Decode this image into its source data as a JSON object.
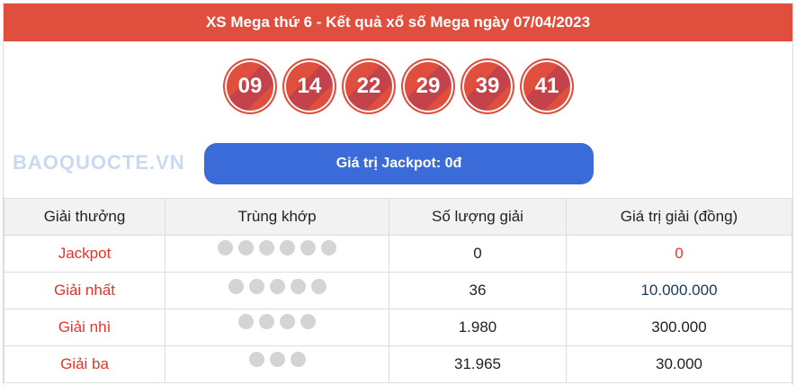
{
  "title": "XS Mega thứ 6 - Kết quả xổ số Mega ngày 07/04/2023",
  "numbers": [
    "09",
    "14",
    "22",
    "29",
    "39",
    "41"
  ],
  "jackpot_label": "Giá trị Jackpot: 0đ",
  "table": {
    "headers": [
      "Giải thưởng",
      "Trùng khớp",
      "Số lượng giải",
      "Giá trị giải (đồng)"
    ],
    "rows": [
      {
        "prize": "Jackpot",
        "matches": 6,
        "count": "0",
        "value": "0"
      },
      {
        "prize": "Giải nhất",
        "matches": 5,
        "count": "36",
        "value": "10.000.000"
      },
      {
        "prize": "Giải nhì",
        "matches": 4,
        "count": "1.980",
        "value": "300.000"
      },
      {
        "prize": "Giải ba",
        "matches": 3,
        "count": "31.965",
        "value": "30.000"
      }
    ]
  },
  "watermark": "BAOQUOCTE.VN",
  "colors": {
    "header": "#e04f3d",
    "jackpot_button": "#3a6bd9",
    "prize_text": "#e8332a"
  }
}
